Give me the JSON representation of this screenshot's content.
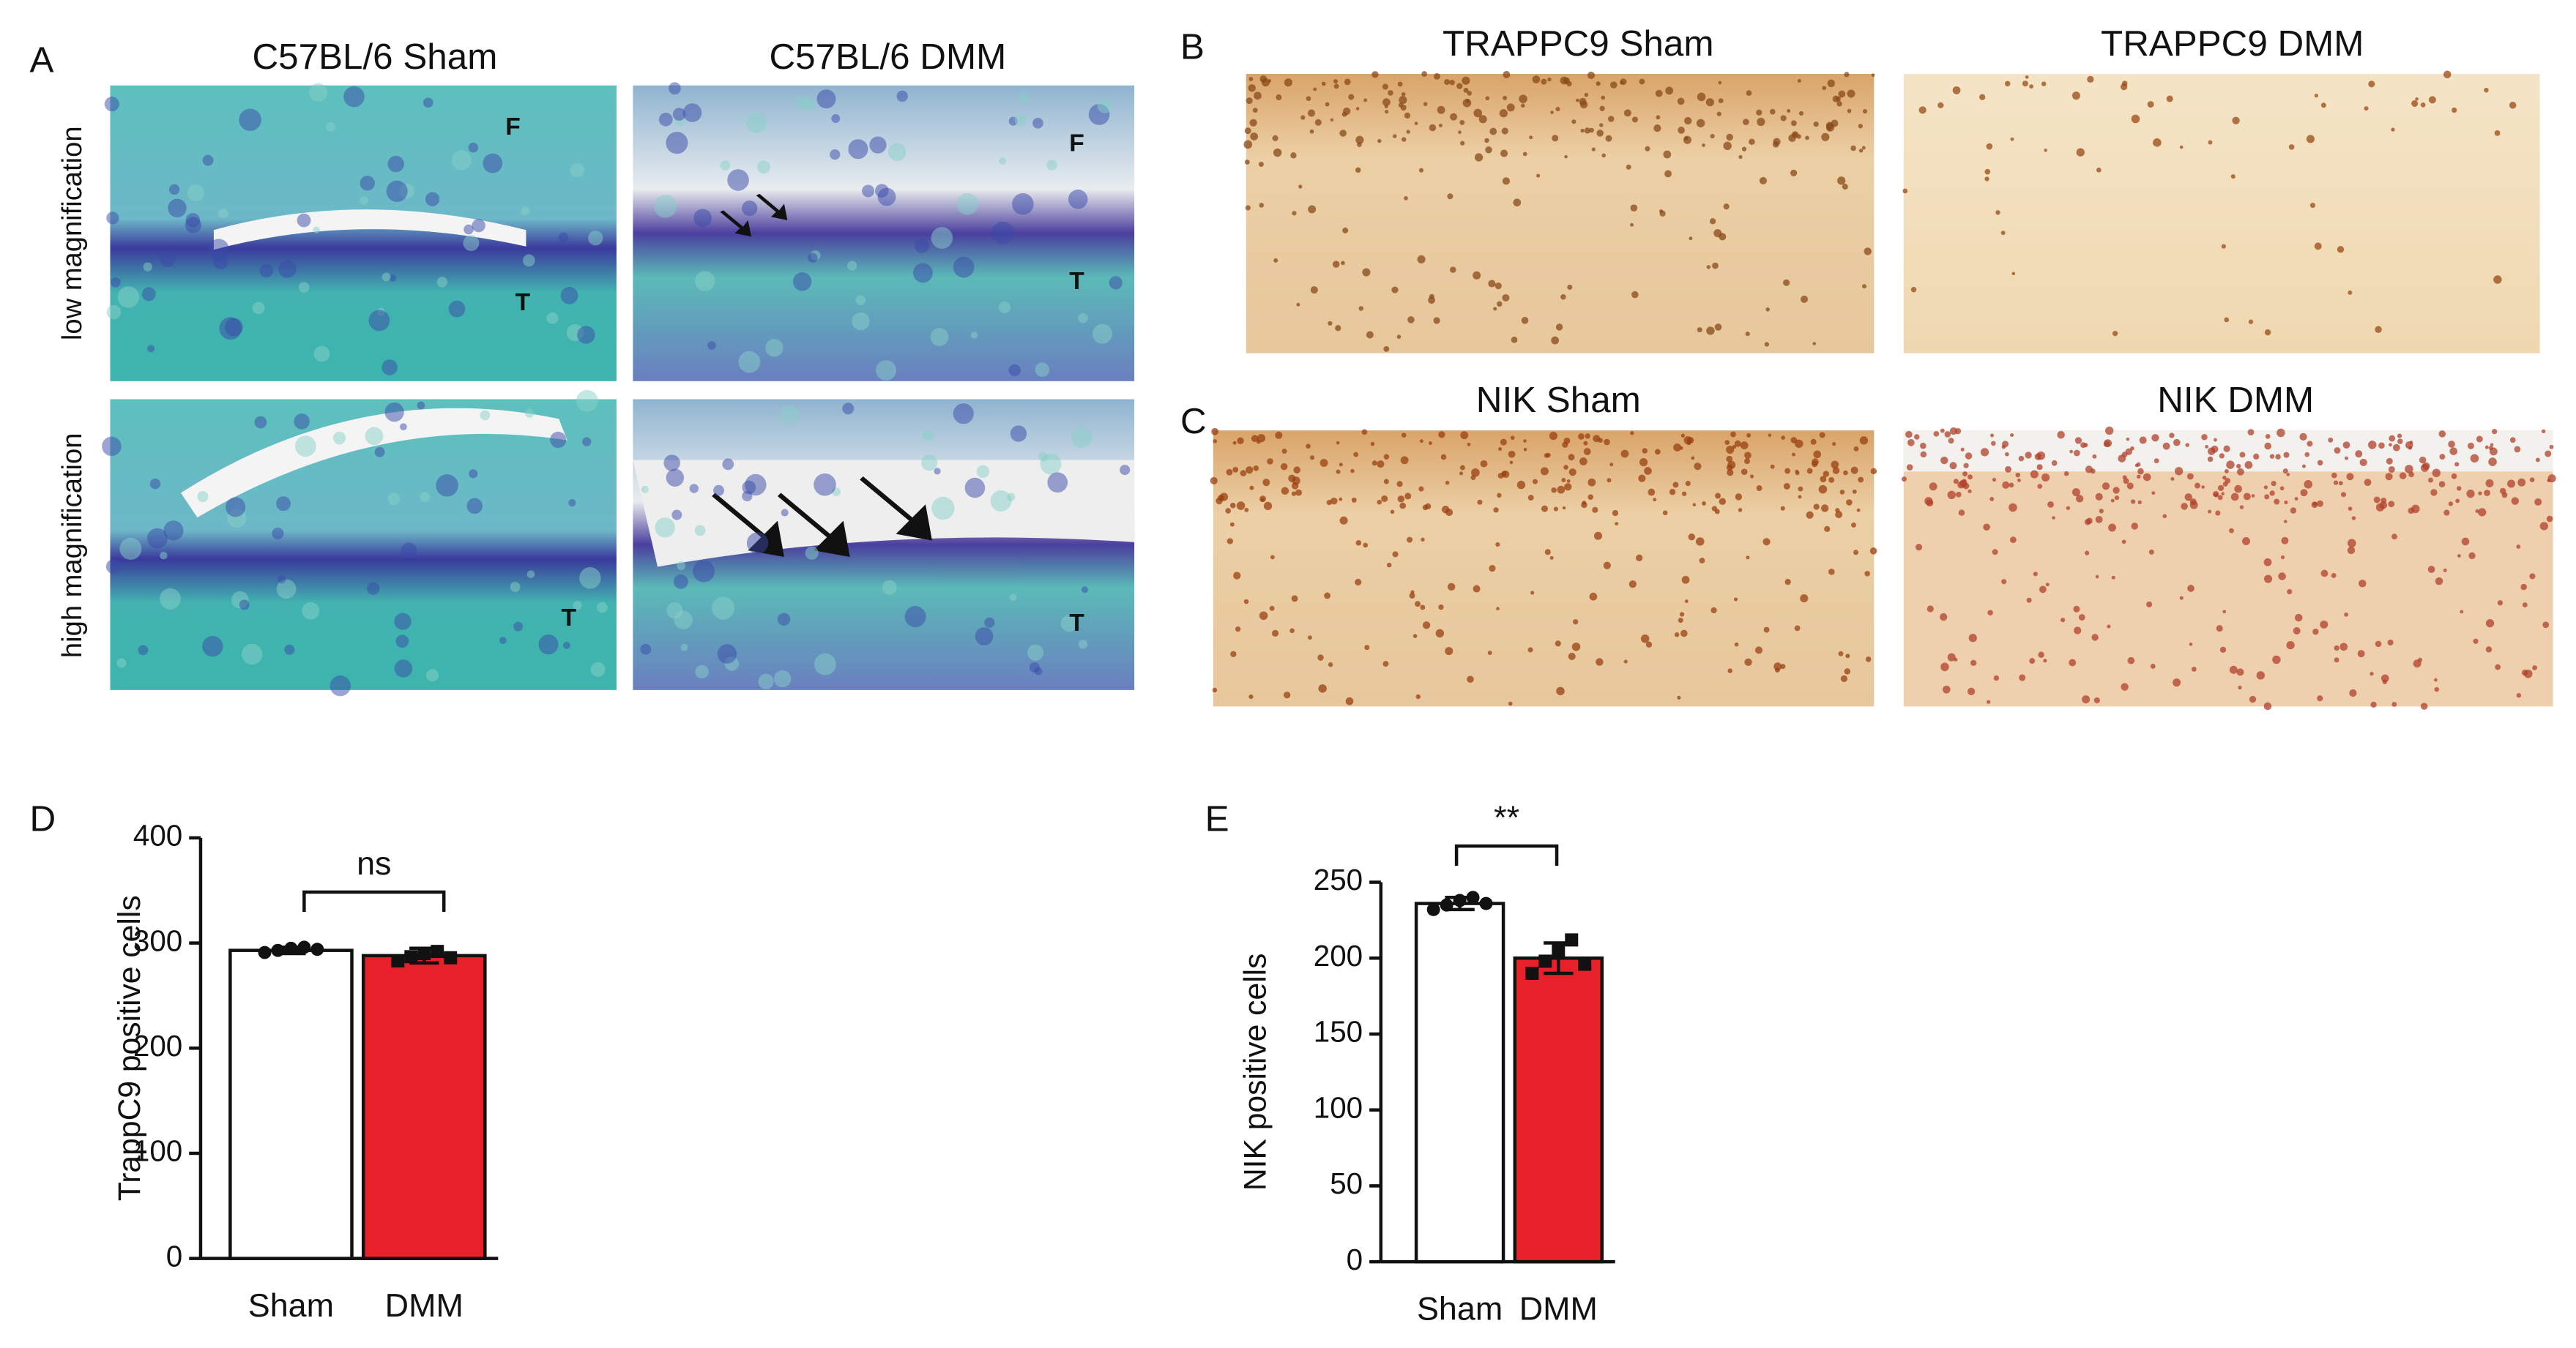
{
  "panels": {
    "letters": [
      "A",
      "B",
      "C",
      "D",
      "E"
    ],
    "a_titles": [
      "C57BL/6 Sham",
      "C57BL/6 DMM"
    ],
    "a_rows": [
      "low magnification",
      "high magnification"
    ],
    "b_titles": [
      "TRAPPC9 Sham",
      "TRAPPC9 DMM"
    ],
    "c_titles": [
      "NIK Sham",
      "NIK DMM"
    ],
    "tissue_labels": [
      "F",
      "F",
      "T",
      "T",
      "T",
      "T"
    ]
  },
  "chart_data": [
    {
      "type": "bar",
      "ylabel": "TrappC9 positive cells",
      "annotation": "ns",
      "categories": [
        "Sham",
        "DMM"
      ],
      "values": [
        293,
        288
      ],
      "errors": [
        3,
        7
      ],
      "points": [
        [
          291,
          293,
          295,
          296,
          294
        ],
        [
          283,
          287,
          290,
          292,
          286
        ]
      ],
      "colors": [
        "#ffffff",
        "#e8202a"
      ],
      "markers": [
        "circle",
        "square"
      ],
      "ylim": [
        0,
        400
      ],
      "yticks": [
        0,
        100,
        200,
        300,
        400
      ]
    },
    {
      "type": "bar",
      "ylabel": "NIK positive cells",
      "annotation": "**",
      "categories": [
        "Sham",
        "DMM"
      ],
      "values": [
        236,
        200
      ],
      "errors": [
        4,
        10
      ],
      "points": [
        [
          232,
          235,
          238,
          240,
          236
        ],
        [
          190,
          198,
          205,
          212,
          196
        ]
      ],
      "colors": [
        "#ffffff",
        "#e8202a"
      ],
      "markers": [
        "circle",
        "square"
      ],
      "ylim": [
        0,
        250
      ],
      "yticks": [
        0,
        50,
        100,
        150,
        200,
        250
      ]
    }
  ]
}
